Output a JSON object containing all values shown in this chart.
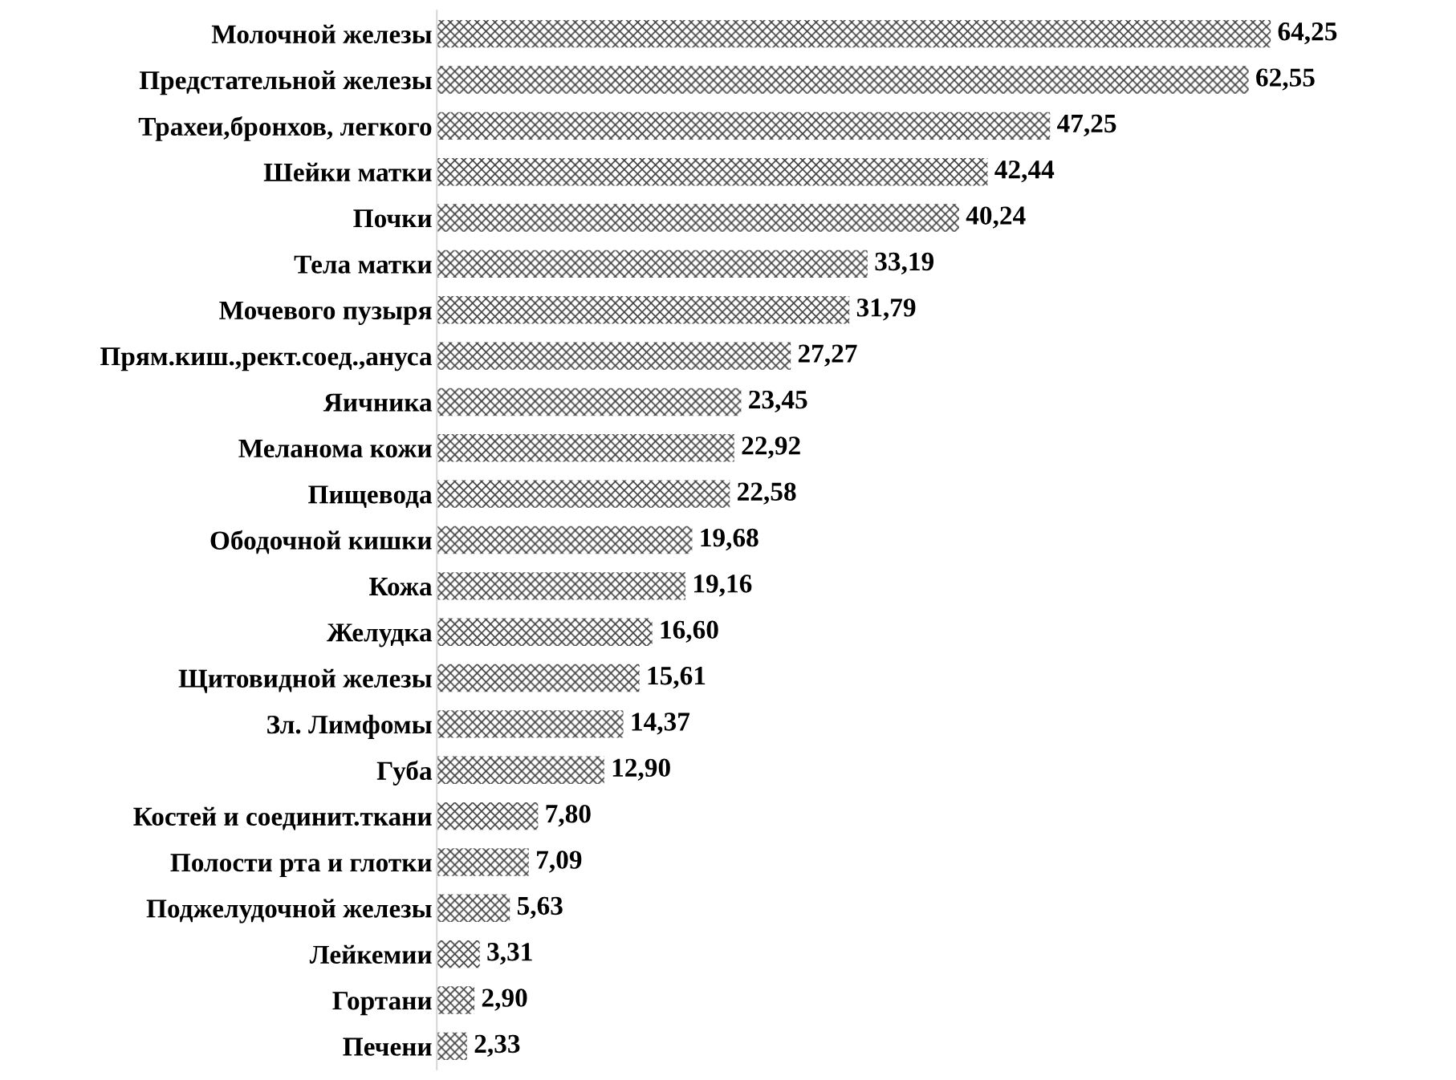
{
  "chart_data": {
    "type": "bar",
    "orientation": "horizontal",
    "categories": [
      "Молочной железы",
      "Предстательной железы",
      "Трахеи,бронхов, легкого",
      "Шейки матки",
      "Почки",
      "Тела матки",
      "Мочевого пузыря",
      "Прям.киш.,рект.соед.,ануса",
      "Яичника",
      "Меланома кожи",
      "Пищевода",
      "Ободочной кишки",
      "Кожа",
      "Желудка",
      "Щитовидной железы",
      "Зл. Лимфомы",
      "Губа",
      "Костей и соединит.ткани",
      "Полости рта и глотки",
      "Поджелудочной железы",
      "Лейкемии",
      "Гортани",
      "Печени"
    ],
    "values": [
      64.25,
      62.55,
      47.25,
      42.44,
      40.24,
      33.19,
      31.79,
      27.27,
      23.45,
      22.92,
      22.58,
      19.68,
      19.16,
      16.6,
      15.61,
      14.37,
      12.9,
      7.8,
      7.09,
      5.63,
      3.31,
      2.9,
      2.33
    ],
    "value_labels": [
      "64,25",
      "62,55",
      "47,25",
      "42,44",
      "40,24",
      "33,19",
      "31,79",
      "27,27",
      "23,45",
      "22,92",
      "22,58",
      "19,68",
      "19,16",
      "16,60",
      "15,61",
      "14,37",
      "12,90",
      "7,80",
      "7,09",
      "5,63",
      "3,31",
      "2,90",
      "2,33"
    ],
    "color": "#404040",
    "grid": false,
    "legend": false
  }
}
